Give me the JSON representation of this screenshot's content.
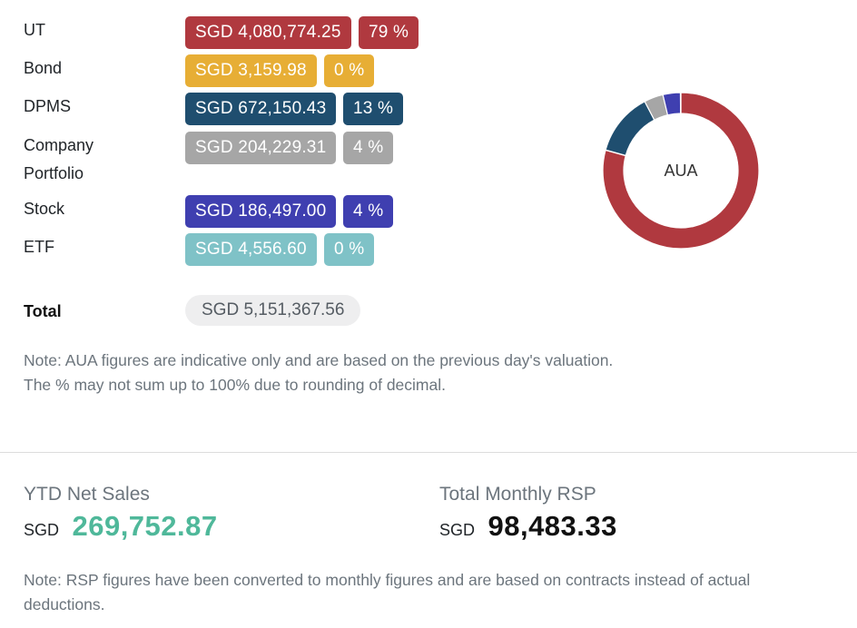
{
  "aua": {
    "rows": [
      {
        "label": "UT",
        "amount": "SGD 4,080,774.25",
        "percent": "79 %",
        "color": "#b0393f"
      },
      {
        "label": "Bond",
        "amount": "SGD 3,159.98",
        "percent": "0 %",
        "color": "#e7ae35"
      },
      {
        "label": "DPMS",
        "amount": "SGD 672,150.43",
        "percent": "13 %",
        "color": "#1f4e6f"
      },
      {
        "label": "Company Portfolio",
        "amount": "SGD 204,229.31",
        "percent": "4 %",
        "color": "#a6a6a6"
      },
      {
        "label": "Stock",
        "amount": "SGD 186,497.00",
        "percent": "4 %",
        "color": "#3f3fb0"
      },
      {
        "label": "ETF",
        "amount": "SGD 4,556.60",
        "percent": "0 %",
        "color": "#7fc2c7"
      }
    ],
    "total_label": "Total",
    "total_amount": "SGD 5,151,367.56",
    "note_line1": "Note: AUA figures are indicative only and are based on the previous day's valuation.",
    "note_line2": "The % may not sum up to 100% due to rounding of decimal.",
    "chart_center_label": "AUA"
  },
  "chart_data": {
    "type": "pie",
    "donut": true,
    "categories": [
      "UT",
      "Bond",
      "DPMS",
      "Company Portfolio",
      "Stock",
      "ETF"
    ],
    "values": [
      4080774.25,
      3159.98,
      672150.43,
      204229.31,
      186497.0,
      4556.6
    ],
    "colors": [
      "#b0393f",
      "#e7ae35",
      "#1f4e6f",
      "#a6a6a6",
      "#3f3fb0",
      "#7fc2c7"
    ],
    "center_label": "AUA"
  },
  "stats": {
    "ytd": {
      "title": "YTD Net Sales",
      "currency": "SGD",
      "value": "269,752.87",
      "color": "#4fb89a"
    },
    "rsp": {
      "title": "Total Monthly RSP",
      "currency": "SGD",
      "value": "98,483.33",
      "color": "#111111"
    },
    "note": "Note: RSP figures have been converted to monthly figures and are based on contracts instead of actual deductions."
  }
}
